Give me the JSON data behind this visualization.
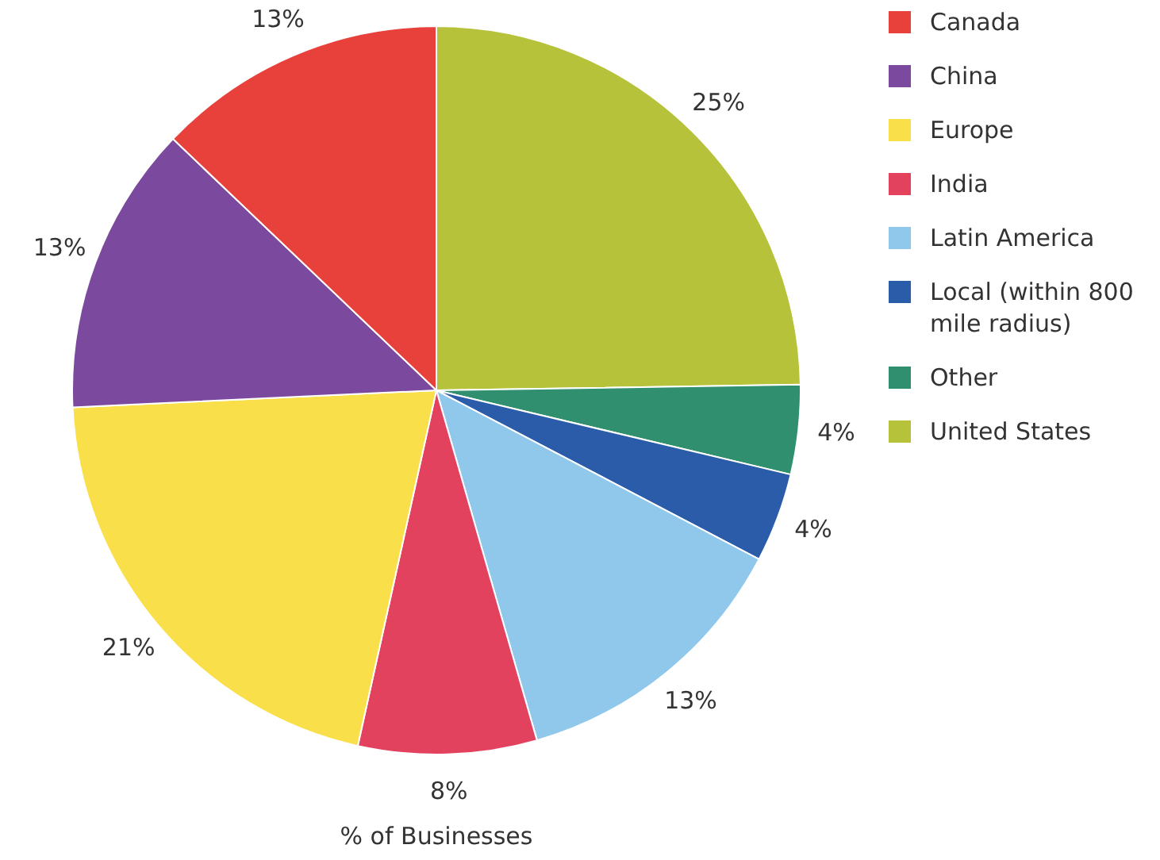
{
  "chart_data": {
    "type": "pie",
    "xlabel": "% of Businesses",
    "categories": [
      "Canada",
      "China",
      "Europe",
      "India",
      "Latin America",
      "Local (within 800 mile radius)",
      "Other",
      "United States"
    ],
    "values": [
      13,
      13,
      21,
      8,
      13,
      4,
      4,
      25
    ],
    "value_labels": [
      "13%",
      "13%",
      "21%",
      "8%",
      "13%",
      "4%",
      "4%",
      "25%"
    ],
    "colors": [
      "#e8413c",
      "#7b4a9e",
      "#f9e04b",
      "#e3425f",
      "#8fc8ea",
      "#2a5caa",
      "#2f8f6e",
      "#b5c23a"
    ],
    "legend": "right"
  }
}
